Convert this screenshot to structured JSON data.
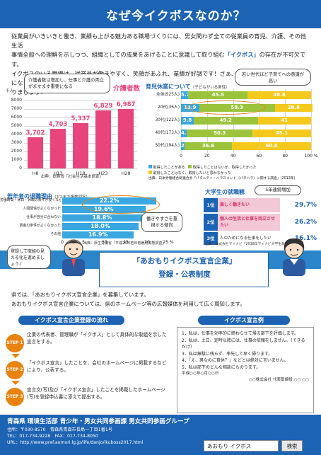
{
  "banner": {
    "title": "なぜ今イクボスなのか？"
  },
  "intro": {
    "line1": "従業員がいきいきと働き、業績も上がる魅力ある職場づくりには、男女問わず全ての従業員の育児、介護、その他生活",
    "line2a": "事情全般への理解を示しつつ、組織としての成果をあげることに意識して取り組む",
    "line2b": "「イクボス」",
    "line2c": "の存在が不可欠です。",
    "line3": "イクボスのいる職場は、従業員が働きやすく、笑顔があふれ、業績が好調です！さぁ、あなたも今日からイクボスにな",
    "line4": "りましょう！"
  },
  "care_chart": {
    "note": "介護者数は増加し、仕事と介護の両立がますます重要になる",
    "title": "介護者数",
    "unit": "千人",
    "source": "出典：総務省「社会生活基本調査」",
    "chart_data": {
      "type": "bar",
      "title": "介護者数",
      "ylabel": "千人",
      "categories": [
        "H8",
        "H13",
        "H18",
        "H23",
        "H28"
      ],
      "values": [
        3702,
        4703,
        5337,
        6829,
        6987
      ],
      "value_labels": [
        "3,702",
        "4,703",
        "5,337",
        "6,829",
        "6,987"
      ],
      "yticks": [
        "0",
        "1000",
        "2000",
        "3000",
        "4000",
        "5000",
        "6000",
        "7000",
        "8000"
      ],
      "ylim": [
        0,
        8000
      ]
    }
  },
  "childcare_chart": {
    "title": "育児休業について",
    "subtitle": "（子どもがいる男性）",
    "callout": "若い世代ほど子育てへの意識が高い",
    "source": "出典：日本労働組合総連合会「パタニティ・ハラスメント（パタハラ）に関する調査」(2013年)",
    "legend": [
      "取得したことがある",
      "取得したことはないが、取得したかった",
      "取得したことはなく、取得したいと思わなかった"
    ],
    "chart_data": {
      "type": "bar",
      "orientation": "horizontal",
      "stacked": true,
      "categories": [
        "全体(525人)",
        "20代(36人)",
        "30代(122人)",
        "40代(173人)",
        "50代(194人)"
      ],
      "series": [
        {
          "name": "取得したことがある",
          "values": [
            5.7,
            13.9,
            9.8,
            4.6,
            2.6
          ],
          "color": "#3aa7e0"
        },
        {
          "name": "取得したことはないが、取得したかった",
          "values": [
            45.5,
            58.3,
            49.2,
            50.3,
            36.6
          ],
          "color": "#9bc43c"
        },
        {
          "name": "取得したことはなく、取得したいと思わなかった",
          "values": [
            48.8,
            28.8,
            41.0,
            45.1,
            60.8
          ],
          "color": "#f4c91c"
        }
      ],
      "xticks": [
        "0",
        "20",
        "40",
        "60",
        "80",
        "100 %"
      ],
      "xlim": [
        0,
        100
      ]
    }
  },
  "reasons_chart": {
    "title": "若年者の退職理由",
    "subtitle": "（3つまで複数回答）",
    "callout": "働きやすさを重視する傾向",
    "source": "出典：厚生労働省「平成25年若年者雇用実態調査」",
    "chart_data": {
      "type": "bar",
      "orientation": "horizontal",
      "categories": [
        "労働時間・休日・休暇の条件が良くなかった",
        "人間関係がよくなかった",
        "仕事が自分に合わない",
        "賃金の条件がよくなかった",
        "その他"
      ],
      "values": [
        22.2,
        19.6,
        18.8,
        18.0,
        16.9
      ],
      "value_labels": [
        "22.2%",
        "19.6%",
        "18.8%",
        "18.0%",
        "16.9%"
      ],
      "xticks": [
        "0",
        "5",
        "10",
        "15",
        "20",
        "25 %"
      ],
      "xlim": [
        0,
        25
      ]
    }
  },
  "jobhunt": {
    "title": "大学生の就職観",
    "badge": "5年連続増加",
    "source": "出典：株式会社マイナビ「2018年マイナビ大学生就職意識調査」",
    "rows": [
      {
        "rank": "1位",
        "label": "楽しく働きたい",
        "value": "29.7%"
      },
      {
        "rank": "2位",
        "label": "個人の生活と仕事を両立させたい",
        "value": "26.2%"
      },
      {
        "rank": "3位",
        "label": "人のためになる仕事をしたい",
        "value": "16.1%"
      }
    ]
  },
  "mascot": {
    "speech": "登録して取組の見える化を進めましょう♪"
  },
  "declaration": {
    "title": "「あおもりイクボス宣言企業」",
    "subtitle": "登録・公表制度",
    "text1": "県では、「あおもりイクボス宣言企業」を募集しています。",
    "text2": "あおもりイクボス宣言企業については、県のホームページ等の広報媒体を利用して広く周知します。"
  },
  "flow": {
    "title": "イクボス宣言企業登録の流れ",
    "steps": [
      {
        "badge": "STEP 1",
        "text": "企業の代表者、管理職が「イクボス」として具体的な取組を示した宣言をする。"
      },
      {
        "badge": "STEP 2",
        "text": "「イクボス宣言」したことを、会社のホームページに掲載するなどにより、公表する。"
      },
      {
        "badge": "STEP 3",
        "text": "宣言文(写)及び「イクボス宣言」したことを掲載したホームページ(写)を登録申込書に添えて提出する。"
      }
    ]
  },
  "example": {
    "title": "イクボス宣言例",
    "items": [
      "1．私は、仕事を効率的に終わらせて帰る部下を評価します。",
      "2．私は、土日、定時以降には、仕事の依頼をしません。（できるだけ）",
      "3．私は無駄に残らず、率先して早く帰ります。",
      "4．「え、男なのに育休？」などとは絶対に言いません。",
      "5．私は部下のどんな相談にものります。"
    ],
    "date": "平成○○年○月○○日",
    "signer": "○○株式会社 代表取締役 ○○ ○○"
  },
  "footer": {
    "org": "青森県 環境生活部 青少年・男女共同参画課 男女共同参画グループ",
    "address": "住所：〒030-8570　青森県青森市長島一丁目1番1号",
    "tel": "TEL：017-734-9228　FAX：017-734-8050",
    "url": "URL：http://www.pref.aomori.lg.jp/life/danjo/ikuboss2017.html"
  },
  "search": {
    "value": "あおもり イクボス",
    "button": "検索"
  }
}
